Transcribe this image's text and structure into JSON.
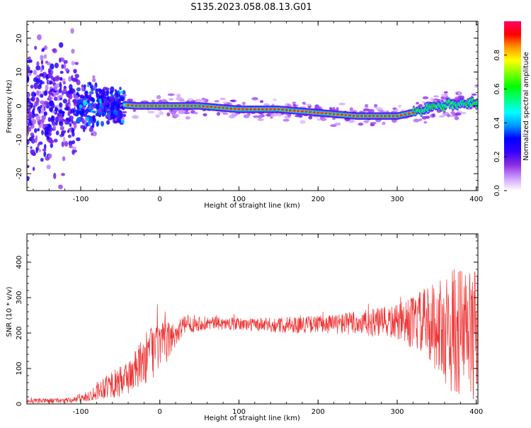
{
  "page_title": "S135.2023.058.08.13.G01",
  "chart_data": [
    {
      "type": "heatmap",
      "title": "S135.2023.058.08.13.G01",
      "xlabel": "Height of straight line (km)",
      "ylabel": "Frequency (Hz)",
      "xlim": [
        -168,
        402
      ],
      "ylim": [
        -25,
        25
      ],
      "x_ticks": [
        -100,
        0,
        100,
        200,
        300,
        400
      ],
      "y_ticks": [
        -20,
        -10,
        0,
        10,
        20
      ],
      "colorbar": {
        "label": "Normalized spectral amplitude",
        "range": [
          0,
          1
        ],
        "ticks": [
          "0.0",
          "0.2",
          "0.4",
          "0.6",
          "0.8"
        ],
        "colormap": [
          "#ffffff",
          "#cc99ff",
          "#8a2be2",
          "#3300ff",
          "#0000ff",
          "#0099ff",
          "#00ffff",
          "#00ff80",
          "#00ff00",
          "#80ff00",
          "#ffff00",
          "#ff9900",
          "#ff0000",
          "#ff0066"
        ]
      },
      "ridge": {
        "x": [
          -45,
          -30,
          0,
          50,
          100,
          150,
          200,
          250,
          300,
          320,
          350,
          400
        ],
        "frequency": [
          0.3,
          0.0,
          0.0,
          0.0,
          -1.0,
          -1.0,
          -2.0,
          -3.0,
          -3.0,
          -2.0,
          0.0,
          1.0
        ]
      },
      "diffuse_region": {
        "x_range": [
          -168,
          -45
        ],
        "frequency_range": [
          -25,
          25
        ]
      }
    },
    {
      "type": "line",
      "xlabel": "Height of straight line (km)",
      "ylabel": "SNR (10 * v/v)",
      "xlim": [
        -168,
        402
      ],
      "ylim": [
        0,
        480
      ],
      "x_ticks": [
        -100,
        0,
        100,
        200,
        300,
        400
      ],
      "y_ticks": [
        0,
        100,
        200,
        300,
        400
      ],
      "color": "#ee3333",
      "envelope": {
        "x": [
          -168,
          -110,
          -90,
          -70,
          -50,
          -30,
          -10,
          10,
          30,
          50,
          70,
          100,
          150,
          200,
          250,
          300,
          330,
          350,
          370,
          390,
          402
        ],
        "mean": [
          8,
          10,
          22,
          50,
          60,
          95,
          150,
          175,
          222,
          228,
          228,
          225,
          222,
          225,
          228,
          230,
          230,
          220,
          205,
          200,
          200
        ],
        "amplitude": [
          6,
          8,
          15,
          35,
          45,
          60,
          80,
          55,
          25,
          22,
          18,
          18,
          22,
          25,
          35,
          50,
          90,
          130,
          180,
          200,
          180
        ]
      }
    }
  ]
}
